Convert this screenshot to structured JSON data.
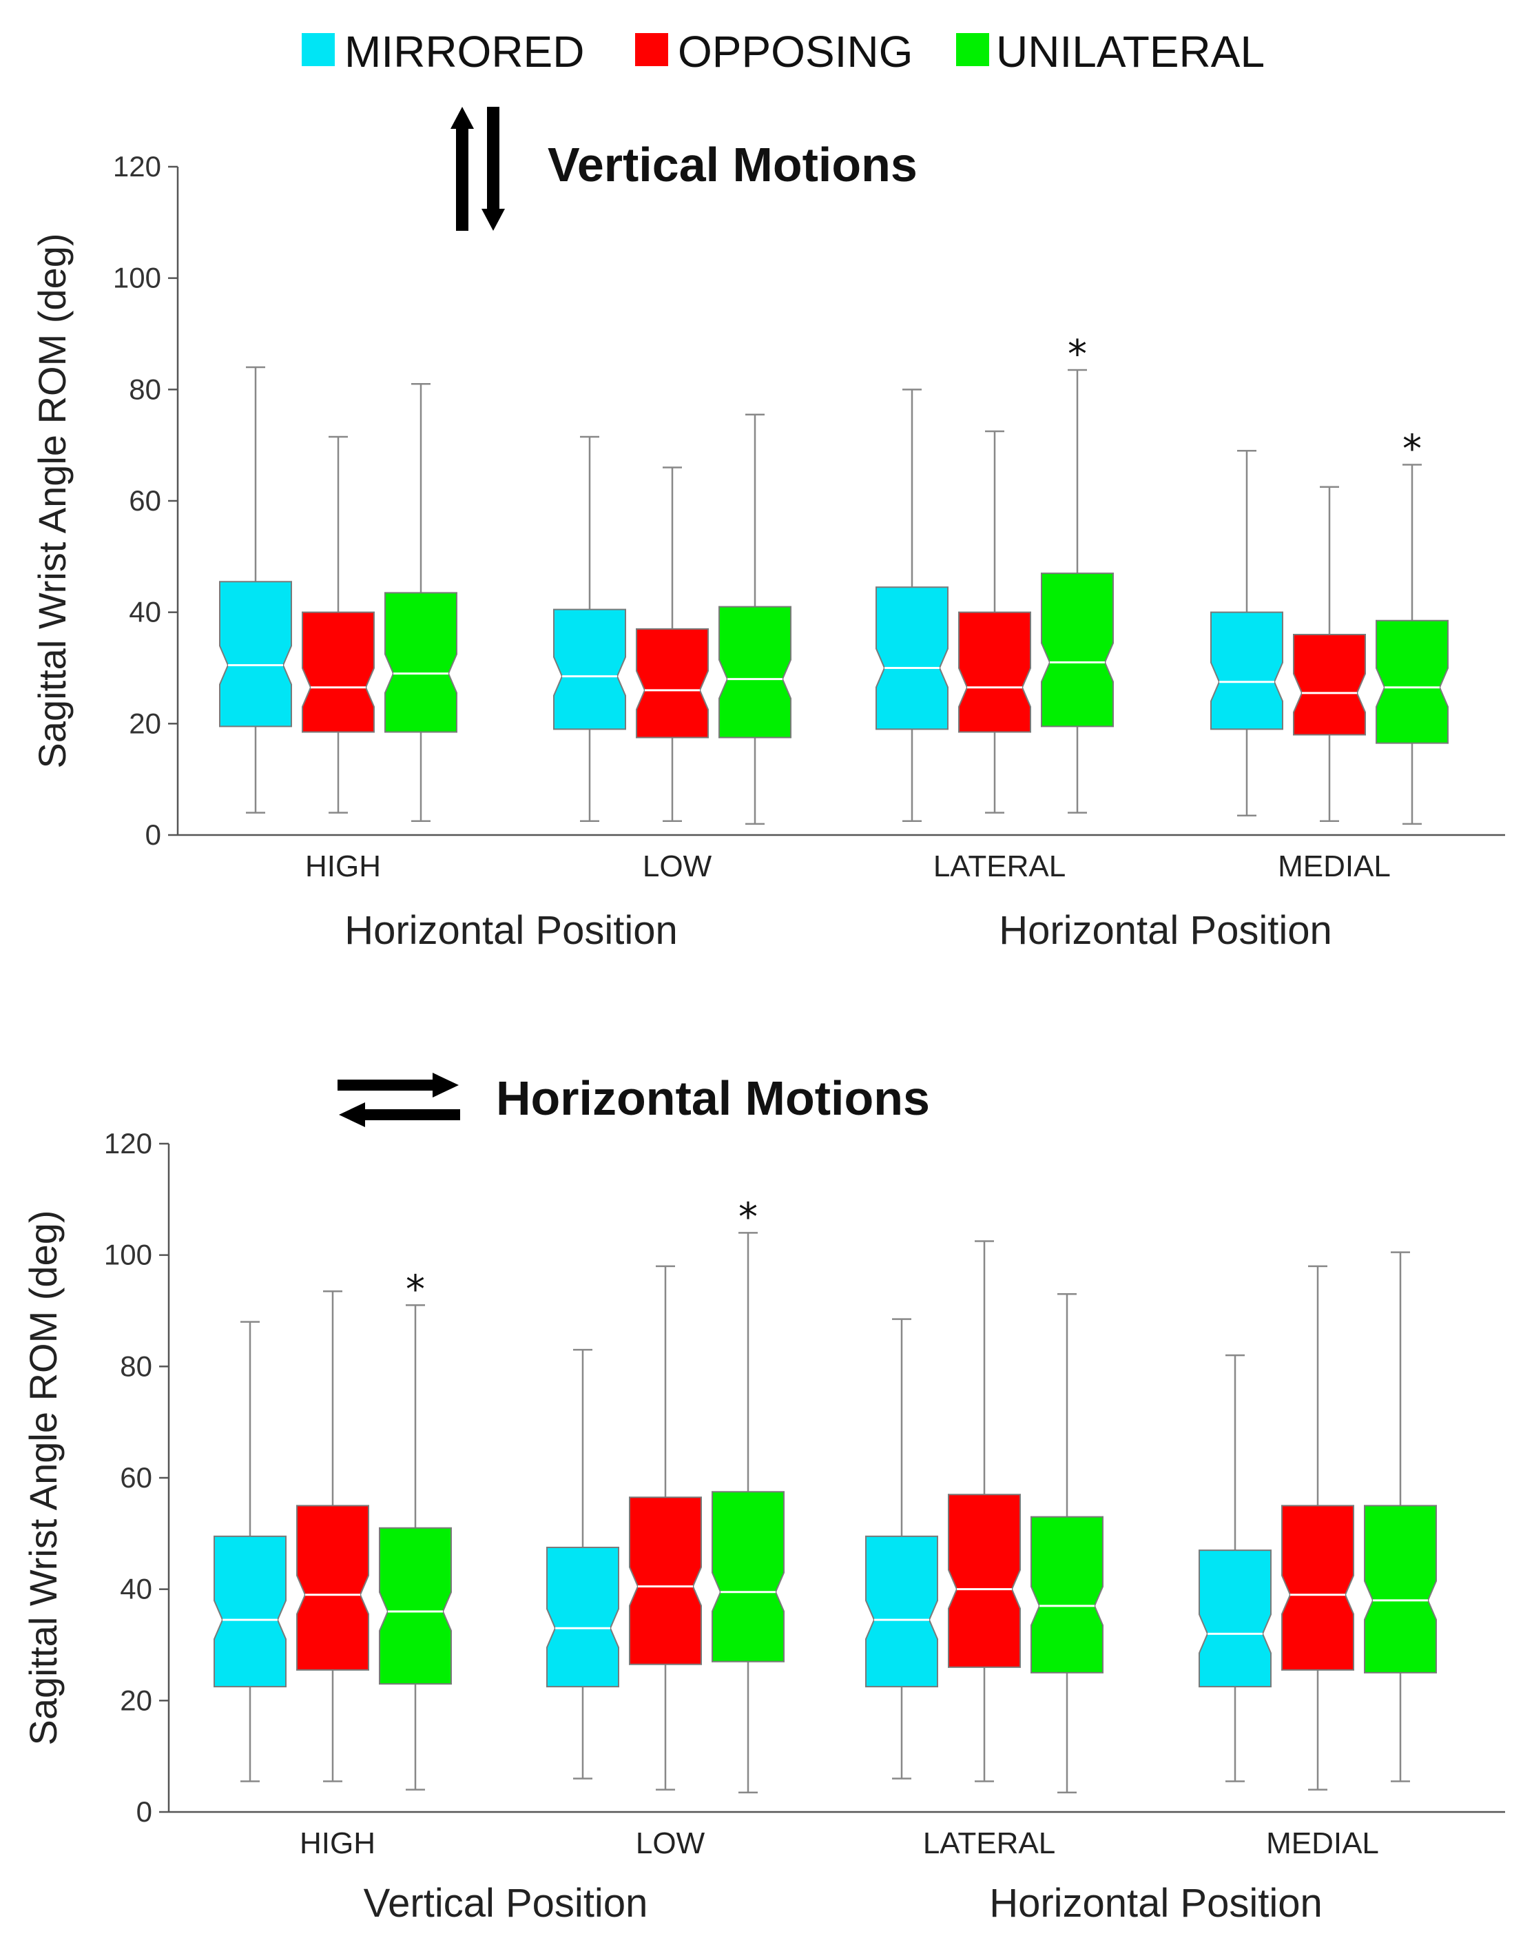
{
  "legend": [
    {
      "label": "MIRRORED",
      "color": "#00e5f5"
    },
    {
      "label": "OPPOSING",
      "color": "#ff0000"
    },
    {
      "label": "UNILATERAL",
      "color": "#00f000"
    }
  ],
  "chart_data": [
    {
      "type": "box",
      "title": "Vertical Motions",
      "title_icon": "vertical-arrows-icon",
      "ylabel": "Sagittal Wrist Angle ROM (deg)",
      "ylim": [
        0,
        120
      ],
      "yticks": [
        "0",
        "20",
        "40",
        "60",
        "80",
        "100",
        "120"
      ],
      "categories": [
        "HIGH",
        "LOW",
        "LATERAL",
        "MEDIAL"
      ],
      "group_labels": [
        "Horizontal Position",
        "Horizontal Position"
      ],
      "series": [
        {
          "name": "MIRRORED",
          "stats": [
            {
              "min": 4,
              "q1": 19.5,
              "median": 30.5,
              "q3": 45.5,
              "max": 84
            },
            {
              "min": 2.5,
              "q1": 19,
              "median": 28.5,
              "q3": 40.5,
              "max": 71.5
            },
            {
              "min": 2.5,
              "q1": 19,
              "median": 30,
              "q3": 44.5,
              "max": 80
            },
            {
              "min": 3.5,
              "q1": 19,
              "median": 27.5,
              "q3": 40,
              "max": 69
            }
          ]
        },
        {
          "name": "OPPOSING",
          "stats": [
            {
              "min": 4,
              "q1": 18.5,
              "median": 26.5,
              "q3": 40,
              "max": 71.5
            },
            {
              "min": 2.5,
              "q1": 17.5,
              "median": 26,
              "q3": 37,
              "max": 66
            },
            {
              "min": 4,
              "q1": 18.5,
              "median": 26.5,
              "q3": 40,
              "max": 72.5
            },
            {
              "min": 2.5,
              "q1": 18,
              "median": 25.5,
              "q3": 36,
              "max": 62.5
            }
          ]
        },
        {
          "name": "UNILATERAL",
          "stats": [
            {
              "min": 2.5,
              "q1": 18.5,
              "median": 29,
              "q3": 43.5,
              "max": 81
            },
            {
              "min": 2,
              "q1": 17.5,
              "median": 28,
              "q3": 41,
              "max": 75.5
            },
            {
              "min": 4,
              "q1": 19.5,
              "median": 31,
              "q3": 47,
              "max": 83.5
            },
            {
              "min": 2,
              "q1": 16.5,
              "median": 26.5,
              "q3": 38.5,
              "max": 66.5
            }
          ]
        }
      ],
      "annotations": [
        {
          "text": "*",
          "category": "LATERAL",
          "series": "UNILATERAL",
          "value": 83.5
        },
        {
          "text": "*",
          "category": "MEDIAL",
          "series": "UNILATERAL",
          "value": 66.5
        }
      ]
    },
    {
      "type": "box",
      "title": "Horizontal Motions",
      "title_icon": "horizontal-arrows-icon",
      "ylabel": "Sagittal Wrist Angle ROM (deg)",
      "ylim": [
        0,
        120
      ],
      "yticks": [
        "0",
        "20",
        "40",
        "60",
        "80",
        "100",
        "120"
      ],
      "categories": [
        "HIGH",
        "LOW",
        "LATERAL",
        "MEDIAL"
      ],
      "group_labels": [
        "Vertical Position",
        "Horizontal Position"
      ],
      "series": [
        {
          "name": "MIRRORED",
          "stats": [
            {
              "min": 5.5,
              "q1": 22.5,
              "median": 34.5,
              "q3": 49.5,
              "max": 88
            },
            {
              "min": 6,
              "q1": 22.5,
              "median": 33,
              "q3": 47.5,
              "max": 83
            },
            {
              "min": 6,
              "q1": 22.5,
              "median": 34.5,
              "q3": 49.5,
              "max": 88.5
            },
            {
              "min": 5.5,
              "q1": 22.5,
              "median": 32,
              "q3": 47,
              "max": 82
            }
          ]
        },
        {
          "name": "OPPOSING",
          "stats": [
            {
              "min": 5.5,
              "q1": 25.5,
              "median": 39,
              "q3": 55,
              "max": 93.5
            },
            {
              "min": 4,
              "q1": 26.5,
              "median": 40.5,
              "q3": 56.5,
              "max": 98
            },
            {
              "min": 5.5,
              "q1": 26,
              "median": 40,
              "q3": 57,
              "max": 102.5
            },
            {
              "min": 4,
              "q1": 25.5,
              "median": 39,
              "q3": 55,
              "max": 98
            }
          ]
        },
        {
          "name": "UNILATERAL",
          "stats": [
            {
              "min": 4,
              "q1": 23,
              "median": 36,
              "q3": 51,
              "max": 91
            },
            {
              "min": 3.5,
              "q1": 27,
              "median": 39.5,
              "q3": 57.5,
              "max": 104
            },
            {
              "min": 3.5,
              "q1": 25,
              "median": 37,
              "q3": 53,
              "max": 93
            },
            {
              "min": 5.5,
              "q1": 25,
              "median": 38,
              "q3": 55,
              "max": 100.5
            }
          ]
        }
      ],
      "annotations": [
        {
          "text": "*",
          "category": "HIGH",
          "series": "UNILATERAL",
          "value": 91
        },
        {
          "text": "*",
          "category": "LOW",
          "series": "UNILATERAL",
          "value": 104
        }
      ]
    }
  ]
}
